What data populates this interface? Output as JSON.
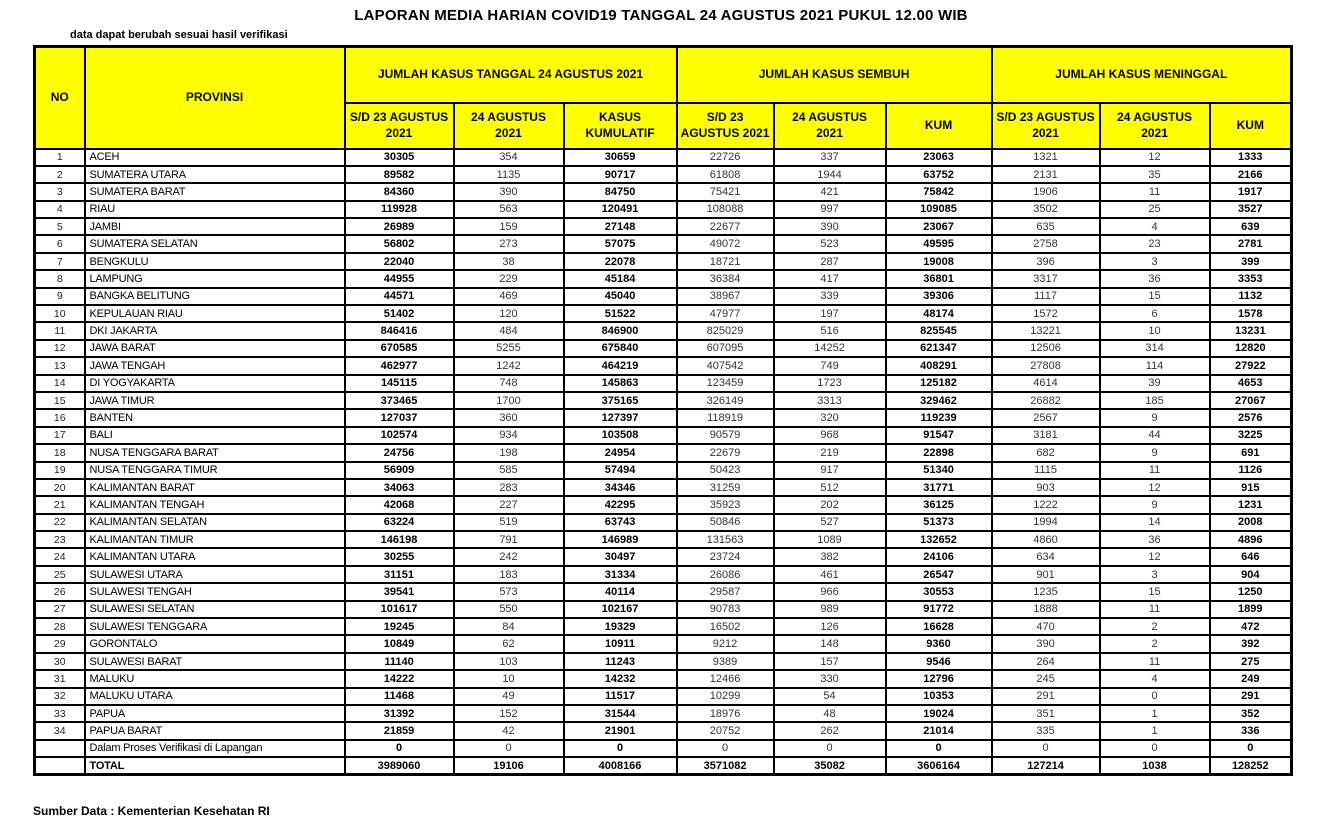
{
  "title": "LAPORAN MEDIA HARIAN COVID19 TANGGAL 24 AGUSTUS 2021 PUKUL 12.00 WIB",
  "note": "data dapat berubah sesuai hasil verifikasi",
  "footer": "Sumber Data : Kementerian Kesehatan RI",
  "colors": {
    "header_bg": "#FFFF00",
    "border": "#000000",
    "page_bg": "#FFFFFF"
  },
  "table": {
    "no_header": "NO",
    "provinsi_header": "PROVINSI",
    "groups": [
      {
        "label": "JUMLAH KASUS TANGGAL 24 AGUSTUS 2021",
        "sub": [
          "S/D 23 AGUSTUS 2021",
          "24 AGUSTUS 2021",
          "KASUS KUMULATIF"
        ]
      },
      {
        "label": "JUMLAH KASUS SEMBUH",
        "sub": [
          "S/D 23 AGUSTUS 2021",
          "24 AGUSTUS 2021",
          "KUM"
        ]
      },
      {
        "label": "JUMLAH KASUS MENINGGAL",
        "sub": [
          "S/D 23 AGUSTUS 2021",
          "24 AGUSTUS 2021",
          "KUM"
        ]
      }
    ],
    "rows": [
      {
        "no": "1",
        "provinsi": "ACEH",
        "values": [
          30305,
          354,
          30659,
          22726,
          337,
          23063,
          1321,
          12,
          1333
        ]
      },
      {
        "no": "2",
        "provinsi": "SUMATERA UTARA",
        "values": [
          89582,
          1135,
          90717,
          61808,
          1944,
          63752,
          2131,
          35,
          2166
        ]
      },
      {
        "no": "3",
        "provinsi": "SUMATERA BARAT",
        "values": [
          84360,
          390,
          84750,
          75421,
          421,
          75842,
          1906,
          11,
          1917
        ]
      },
      {
        "no": "4",
        "provinsi": "RIAU",
        "values": [
          119928,
          563,
          120491,
          108088,
          997,
          109085,
          3502,
          25,
          3527
        ]
      },
      {
        "no": "5",
        "provinsi": "JAMBI",
        "values": [
          26989,
          159,
          27148,
          22677,
          390,
          23067,
          635,
          4,
          639
        ]
      },
      {
        "no": "6",
        "provinsi": "SUMATERA SELATAN",
        "values": [
          56802,
          273,
          57075,
          49072,
          523,
          49595,
          2758,
          23,
          2781
        ]
      },
      {
        "no": "7",
        "provinsi": "BENGKULU",
        "values": [
          22040,
          38,
          22078,
          18721,
          287,
          19008,
          396,
          3,
          399
        ]
      },
      {
        "no": "8",
        "provinsi": "LAMPUNG",
        "values": [
          44955,
          229,
          45184,
          36384,
          417,
          36801,
          3317,
          36,
          3353
        ]
      },
      {
        "no": "9",
        "provinsi": "BANGKA BELITUNG",
        "values": [
          44571,
          469,
          45040,
          38967,
          339,
          39306,
          1117,
          15,
          1132
        ]
      },
      {
        "no": "10",
        "provinsi": "KEPULAUAN RIAU",
        "values": [
          51402,
          120,
          51522,
          47977,
          197,
          48174,
          1572,
          6,
          1578
        ]
      },
      {
        "no": "11",
        "provinsi": "DKI JAKARTA",
        "values": [
          846416,
          484,
          846900,
          825029,
          516,
          825545,
          13221,
          10,
          13231
        ]
      },
      {
        "no": "12",
        "provinsi": "JAWA BARAT",
        "values": [
          670585,
          5255,
          675840,
          607095,
          14252,
          621347,
          12506,
          314,
          12820
        ]
      },
      {
        "no": "13",
        "provinsi": "JAWA TENGAH",
        "values": [
          462977,
          1242,
          464219,
          407542,
          749,
          408291,
          27808,
          114,
          27922
        ]
      },
      {
        "no": "14",
        "provinsi": "DI YOGYAKARTA",
        "values": [
          145115,
          748,
          145863,
          123459,
          1723,
          125182,
          4614,
          39,
          4653
        ]
      },
      {
        "no": "15",
        "provinsi": "JAWA TIMUR",
        "values": [
          373465,
          1700,
          375165,
          326149,
          3313,
          329462,
          26882,
          185,
          27067
        ]
      },
      {
        "no": "16",
        "provinsi": "BANTEN",
        "values": [
          127037,
          360,
          127397,
          118919,
          320,
          119239,
          2567,
          9,
          2576
        ]
      },
      {
        "no": "17",
        "provinsi": "BALI",
        "values": [
          102574,
          934,
          103508,
          90579,
          968,
          91547,
          3181,
          44,
          3225
        ]
      },
      {
        "no": "18",
        "provinsi": "NUSA TENGGARA BARAT",
        "values": [
          24756,
          198,
          24954,
          22679,
          219,
          22898,
          682,
          9,
          691
        ]
      },
      {
        "no": "19",
        "provinsi": "NUSA TENGGARA TIMUR",
        "values": [
          56909,
          585,
          57494,
          50423,
          917,
          51340,
          1115,
          11,
          1126
        ]
      },
      {
        "no": "20",
        "provinsi": "KALIMANTAN BARAT",
        "values": [
          34063,
          283,
          34346,
          31259,
          512,
          31771,
          903,
          12,
          915
        ]
      },
      {
        "no": "21",
        "provinsi": "KALIMANTAN TENGAH",
        "values": [
          42068,
          227,
          42295,
          35923,
          202,
          36125,
          1222,
          9,
          1231
        ]
      },
      {
        "no": "22",
        "provinsi": "KALIMANTAN SELATAN",
        "values": [
          63224,
          519,
          63743,
          50846,
          527,
          51373,
          1994,
          14,
          2008
        ]
      },
      {
        "no": "23",
        "provinsi": "KALIMANTAN TIMUR",
        "values": [
          146198,
          791,
          146989,
          131563,
          1089,
          132652,
          4860,
          36,
          4896
        ]
      },
      {
        "no": "24",
        "provinsi": "KALIMANTAN UTARA",
        "values": [
          30255,
          242,
          30497,
          23724,
          382,
          24106,
          634,
          12,
          646
        ]
      },
      {
        "no": "25",
        "provinsi": "SULAWESI UTARA",
        "values": [
          31151,
          183,
          31334,
          26086,
          461,
          26547,
          901,
          3,
          904
        ]
      },
      {
        "no": "26",
        "provinsi": "SULAWESI TENGAH",
        "values": [
          39541,
          573,
          40114,
          29587,
          966,
          30553,
          1235,
          15,
          1250
        ]
      },
      {
        "no": "27",
        "provinsi": "SULAWESI SELATAN",
        "values": [
          101617,
          550,
          102167,
          90783,
          989,
          91772,
          1888,
          11,
          1899
        ]
      },
      {
        "no": "28",
        "provinsi": "SULAWESI TENGGARA",
        "values": [
          19245,
          84,
          19329,
          16502,
          126,
          16628,
          470,
          2,
          472
        ]
      },
      {
        "no": "29",
        "provinsi": "GORONTALO",
        "values": [
          10849,
          62,
          10911,
          9212,
          148,
          9360,
          390,
          2,
          392
        ]
      },
      {
        "no": "30",
        "provinsi": "SULAWESI BARAT",
        "values": [
          11140,
          103,
          11243,
          9389,
          157,
          9546,
          264,
          11,
          275
        ]
      },
      {
        "no": "31",
        "provinsi": "MALUKU",
        "values": [
          14222,
          10,
          14232,
          12466,
          330,
          12796,
          245,
          4,
          249
        ]
      },
      {
        "no": "32",
        "provinsi": "MALUKU UTARA",
        "values": [
          11468,
          49,
          11517,
          10299,
          54,
          10353,
          291,
          0,
          291
        ]
      },
      {
        "no": "33",
        "provinsi": "PAPUA",
        "values": [
          31392,
          152,
          31544,
          18976,
          48,
          19024,
          351,
          1,
          352
        ]
      },
      {
        "no": "34",
        "provinsi": "PAPUA BARAT",
        "values": [
          21859,
          42,
          21901,
          20752,
          262,
          21014,
          335,
          1,
          336
        ]
      }
    ],
    "verification_row": {
      "label": "Dalam Proses Verifikasi di Lapangan",
      "values": [
        0,
        0,
        0,
        0,
        0,
        0,
        0,
        0,
        0
      ]
    },
    "total_row": {
      "label": "TOTAL",
      "values": [
        3989060,
        19106,
        4008166,
        3571082,
        35082,
        3606164,
        127214,
        1038,
        128252
      ]
    }
  }
}
